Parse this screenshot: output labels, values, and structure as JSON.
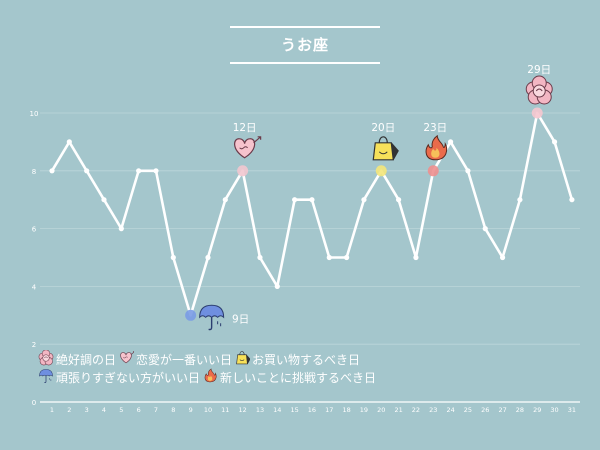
{
  "chart_data": {
    "type": "line",
    "title": "うお座",
    "x": [
      1,
      2,
      3,
      4,
      5,
      6,
      7,
      8,
      9,
      10,
      11,
      12,
      13,
      14,
      15,
      16,
      17,
      18,
      19,
      20,
      21,
      22,
      23,
      24,
      25,
      26,
      27,
      28,
      29,
      30,
      31
    ],
    "values": [
      8,
      9,
      8,
      7,
      6,
      8,
      8,
      5,
      3,
      5,
      7,
      8,
      5,
      4,
      7,
      7,
      5,
      5,
      7,
      8,
      7,
      5,
      8,
      9,
      8,
      6,
      5,
      7,
      10,
      9,
      7
    ],
    "ylim": [
      0,
      10
    ],
    "yticks": [
      0,
      2,
      4,
      6,
      8,
      10
    ],
    "xlabel": "",
    "ylabel": "",
    "grid": true,
    "line_color": "#ffffff",
    "highlights": [
      {
        "day": 9,
        "label": "9日",
        "icon": "umbrella-icon",
        "color": "#7a9be6"
      },
      {
        "day": 12,
        "label": "12日",
        "icon": "heart-icon",
        "color": "#f2c7cf"
      },
      {
        "day": 20,
        "label": "20日",
        "icon": "shopping-bag-icon",
        "color": "#f4e57a"
      },
      {
        "day": 23,
        "label": "23日",
        "icon": "flame-icon",
        "color": "#ee8f8f"
      },
      {
        "day": 29,
        "label": "29日",
        "icon": "flower-icon",
        "color": "#f6c6cf"
      }
    ],
    "legend": [
      {
        "icon": "flower-icon",
        "label": "絶好調の日"
      },
      {
        "icon": "heart-icon",
        "label": "恋愛が一番いい日"
      },
      {
        "icon": "shopping-bag-icon",
        "label": "お買い物するべき日"
      },
      {
        "icon": "umbrella-icon",
        "label": "頑張りすぎない方がいい日"
      },
      {
        "icon": "flame-icon",
        "label": "新しいことに挑戦するべき日"
      }
    ]
  }
}
